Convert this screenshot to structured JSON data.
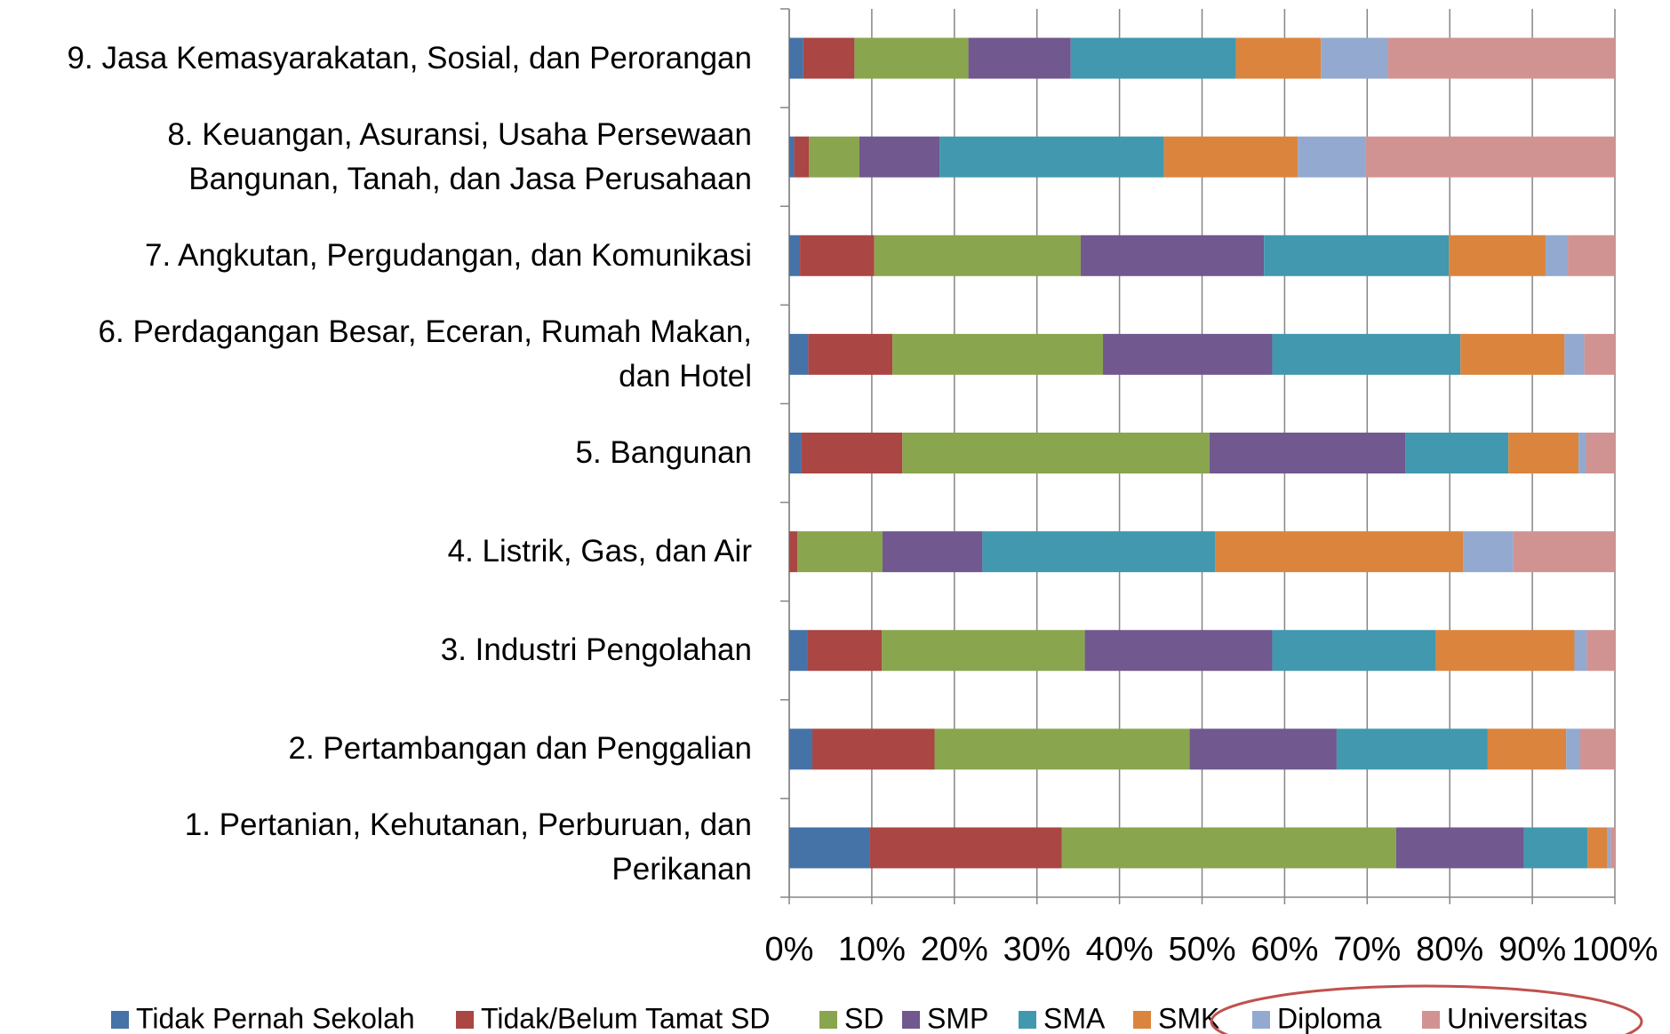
{
  "chart_data": {
    "type": "stacked-bar-horizontal-100",
    "categories": [
      "1.  Pertanian, Kehutanan, Perburuan, dan\nPerikanan",
      "2.  Pertambangan dan Penggalian",
      "3.  Industri Pengolahan",
      "4.  Listrik, Gas, dan Air",
      "5.  Bangunan",
      "6.  Perdagangan  Besar, Eceran, Rumah Makan,\ndan Hotel",
      "7.  Angkutan, Pergudangan, dan Komunikasi",
      "8.  Keuangan, Asuransi, Usaha Persewaan\nBangunan, Tanah, dan Jasa Perusahaan",
      "9.  Jasa Kemasyarakatan, Sosial, dan Perorangan"
    ],
    "series": [
      {
        "name": "Tidak Pernah Sekolah",
        "color": "#4572a7",
        "values": [
          9.7,
          2.8,
          2.2,
          0,
          1.5,
          2.3,
          1.3,
          0.6,
          1.7
        ]
      },
      {
        "name": "Tidak/Belum Tamat SD",
        "color": "#aa4643",
        "values": [
          23.3,
          14.8,
          9.0,
          1.0,
          12.2,
          10.2,
          9.0,
          1.8,
          6.2
        ]
      },
      {
        "name": "SD",
        "color": "#89a54e",
        "values": [
          40.5,
          30.9,
          24.6,
          10.3,
          37.2,
          25.5,
          25.0,
          6.1,
          13.8
        ]
      },
      {
        "name": "SMP",
        "color": "#71588f",
        "values": [
          15.5,
          17.8,
          22.7,
          12.1,
          23.7,
          20.5,
          22.2,
          9.7,
          12.4
        ]
      },
      {
        "name": "SMA",
        "color": "#4198af",
        "values": [
          7.7,
          18.3,
          19.8,
          28.2,
          12.5,
          22.8,
          22.4,
          27.2,
          20.0
        ]
      },
      {
        "name": "SMK",
        "color": "#db843d",
        "values": [
          2.4,
          9.5,
          16.8,
          30.0,
          8.5,
          12.6,
          11.7,
          16.2,
          10.3
        ]
      },
      {
        "name": "Diploma",
        "color": "#93a9cf",
        "values": [
          0.4,
          1.7,
          1.5,
          6.1,
          0.9,
          2.4,
          2.7,
          8.2,
          8.1
        ]
      },
      {
        "name": "Universitas",
        "color": "#d19392",
        "values": [
          0.5,
          4.2,
          3.4,
          12.3,
          3.5,
          3.7,
          5.7,
          30.2,
          27.5
        ]
      }
    ],
    "xlim": [
      0,
      100
    ],
    "xticks": [
      {
        "value": 0,
        "label": "0%"
      },
      {
        "value": 10,
        "label": "10%"
      },
      {
        "value": 20,
        "label": "20%"
      },
      {
        "value": 30,
        "label": "30%"
      },
      {
        "value": 40,
        "label": "40%"
      },
      {
        "value": 50,
        "label": "50%"
      },
      {
        "value": 60,
        "label": "60%"
      },
      {
        "value": 70,
        "label": "70%"
      },
      {
        "value": 80,
        "label": "80%"
      },
      {
        "value": 90,
        "label": "90%"
      },
      {
        "value": 100,
        "label": "100%"
      }
    ],
    "grid": true,
    "legend": "bottom"
  }
}
